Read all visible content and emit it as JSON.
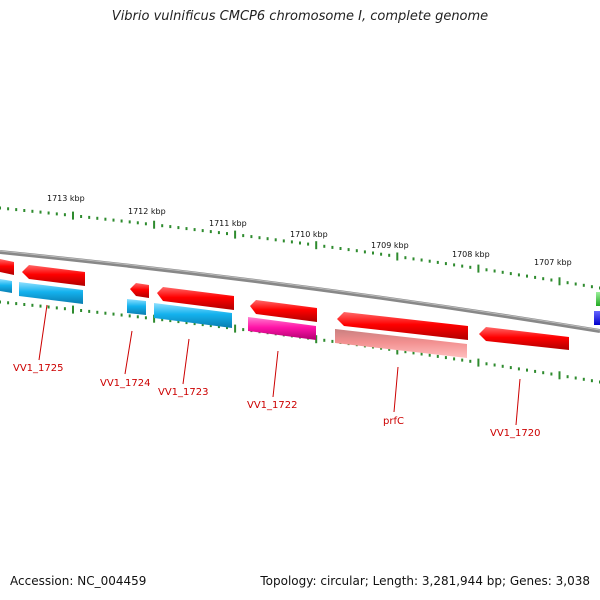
{
  "title": "Vibrio vulnificus CMCP6 chromosome I, complete genome",
  "footer": {
    "accession": "Accession: NC_004459",
    "summary": "Topology: circular; Length: 3,281,944 bp; Genes: 3,038"
  },
  "colors": {
    "backbone": "#888888",
    "tick": "#2e8b2e",
    "label": "#cc0000",
    "red": "#ff0000",
    "cyan": "#1ab6f0",
    "magenta": "#ff1aa8",
    "salmon": "#f08a8a",
    "green": "#33cc33",
    "blue": "#0000ff"
  },
  "scale_labels": [
    {
      "id": "1713",
      "text": "1713 kbp"
    },
    {
      "id": "1712",
      "text": "1712 kbp"
    },
    {
      "id": "1711",
      "text": "1711 kbp"
    },
    {
      "id": "1710",
      "text": "1710 kbp"
    },
    {
      "id": "1709",
      "text": "1709 kbp"
    },
    {
      "id": "1708",
      "text": "1708 kbp"
    },
    {
      "id": "1707",
      "text": "1707 kbp"
    }
  ],
  "gene_labels": [
    {
      "id": "vv1-1725",
      "text": "VV1_1725"
    },
    {
      "id": "vv1-1724",
      "text": "VV1_1724"
    },
    {
      "id": "vv1-1723",
      "text": "VV1_1723"
    },
    {
      "id": "vv1-1722",
      "text": "VV1_1722"
    },
    {
      "id": "prfc",
      "text": "prfC"
    },
    {
      "id": "vv1-1720",
      "text": "VV1_1720"
    }
  ]
}
